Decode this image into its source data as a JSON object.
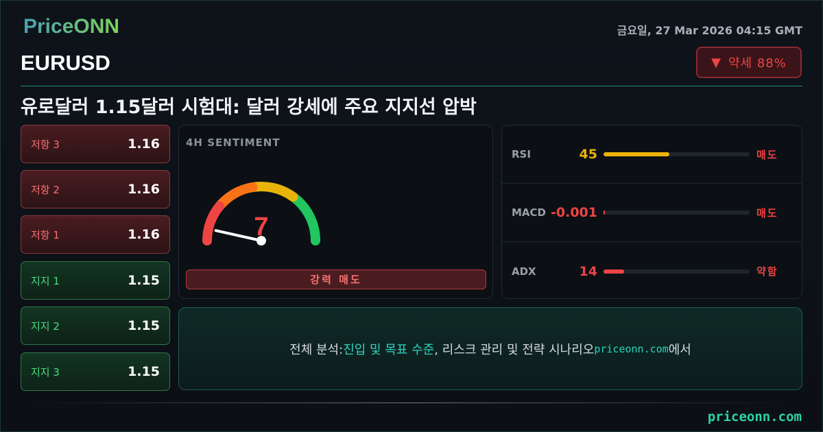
{
  "brand": {
    "logo": "PriceONN",
    "footer_site": "priceonn.com"
  },
  "header": {
    "symbol": "EURUSD",
    "datetime": "금요일, 27 Mar 2026 04:15 GMT",
    "headline": "유로달러 1.15달러 시험대: 달러 강세에 주요 지지선 압박"
  },
  "badge": {
    "icon": "triangle-down-icon",
    "label": "약세 88%",
    "color": "#ef4444"
  },
  "levels": [
    {
      "name": "저항 3",
      "value": "1.16",
      "type": "resistance"
    },
    {
      "name": "저항 2",
      "value": "1.16",
      "type": "resistance"
    },
    {
      "name": "저항 1",
      "value": "1.16",
      "type": "resistance"
    },
    {
      "name": "지지 1",
      "value": "1.15",
      "type": "support"
    },
    {
      "name": "지지 2",
      "value": "1.15",
      "type": "support"
    },
    {
      "name": "지지 3",
      "value": "1.15",
      "type": "support"
    }
  ],
  "gauge": {
    "title": "4H SENTIMENT",
    "value": "7",
    "score": 7,
    "max": 100,
    "label": "강력 매도",
    "colors": [
      "#ef4444",
      "#f97316",
      "#eab308",
      "#22c55e"
    ]
  },
  "indicators": [
    {
      "name": "RSI",
      "value": "45",
      "signal": "매도",
      "fill_percent": 45,
      "color": "#eab308"
    },
    {
      "name": "MACD",
      "value": "-0.001",
      "signal": "매도",
      "fill_percent": 0.5,
      "color": "#ef4444"
    },
    {
      "name": "ADX",
      "value": "14",
      "signal": "약함",
      "fill_percent": 14,
      "color": "#ef4444"
    }
  ],
  "cta": {
    "prefix": "전체 분석: ",
    "highlight": "진입 및 목표 수준",
    "middle": ", 리스크 관리 및 전략 시나리오 ",
    "site": "priceonn.com",
    "suffix": "에서"
  }
}
